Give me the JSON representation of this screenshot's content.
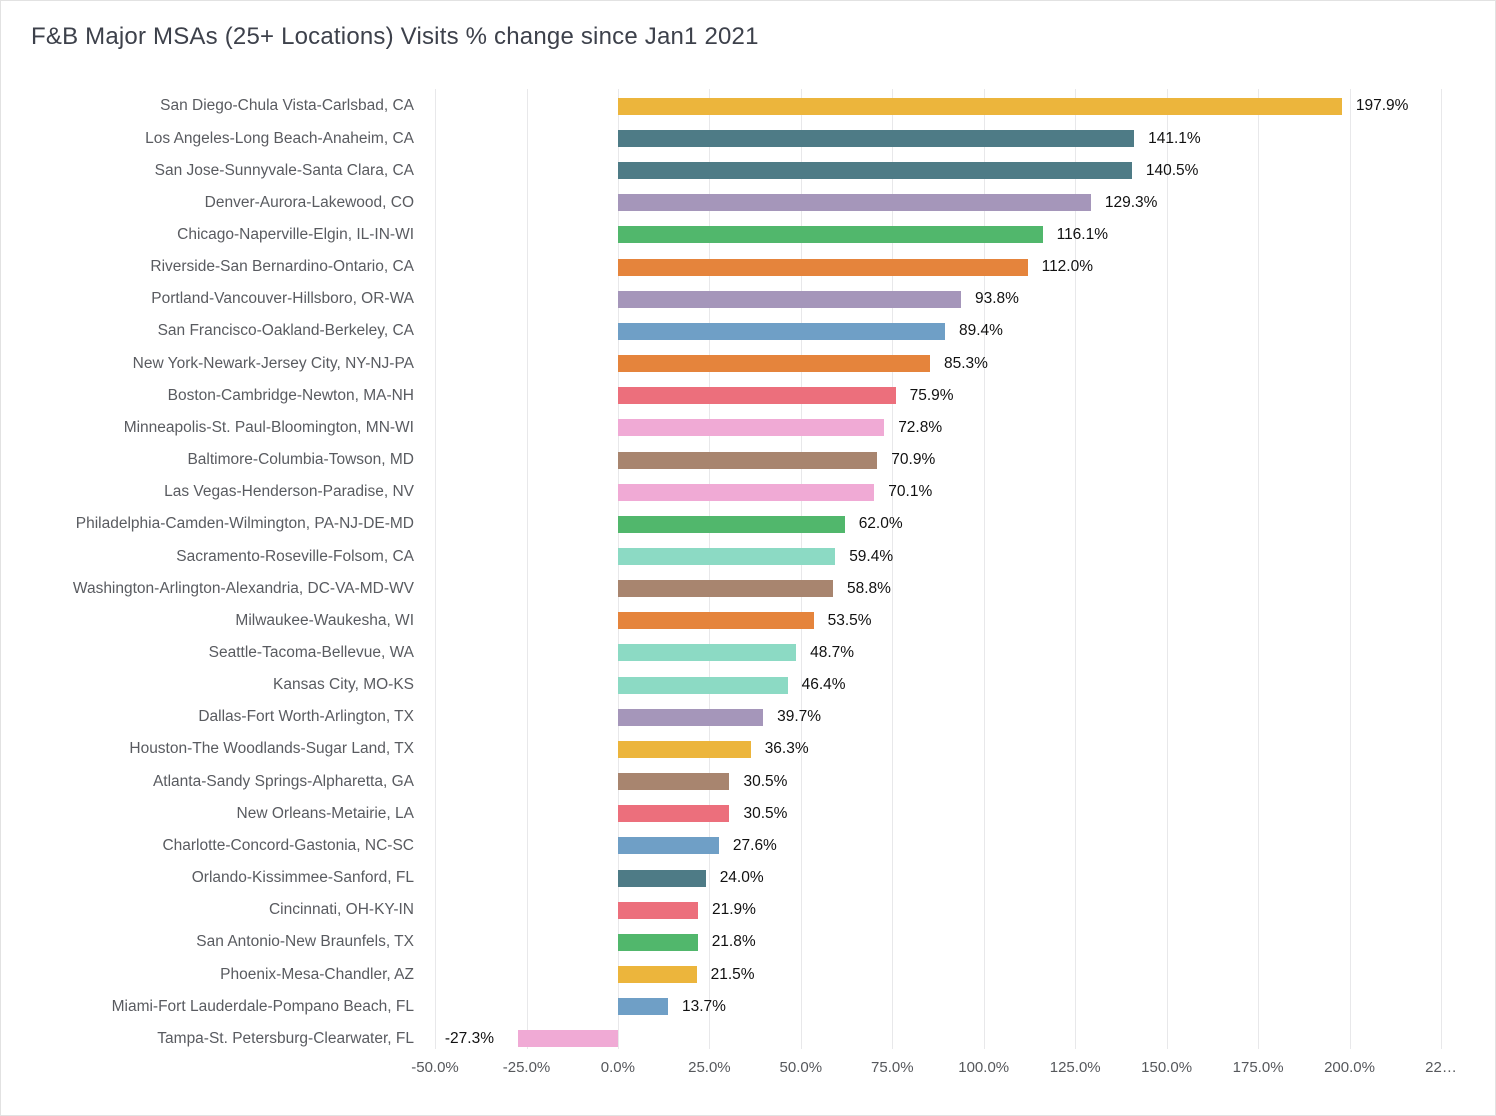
{
  "chart": {
    "title": "F&B Major MSAs (25+ Locations) Visits % change since Jan1 2021"
  },
  "chart_data": {
    "type": "bar",
    "orientation": "horizontal",
    "title": "F&B Major MSAs (25+ Locations) Visits % change since Jan1 2021",
    "xlabel": "",
    "ylabel": "",
    "xlim": [
      -50,
      225
    ],
    "grid": true,
    "background": "#ffffff",
    "grid_color": "#e8e8ea",
    "category_label_color": "#595b60",
    "value_label_color": "#111111",
    "axis_tick_color": "#56585c",
    "x_tick_values": [
      -50,
      -25,
      0,
      25,
      50,
      75,
      100,
      125,
      150,
      175,
      200,
      225
    ],
    "x_tick_labels": [
      "-50.0%",
      "-25.0%",
      "0.0%",
      "25.0%",
      "50.0%",
      "75.0%",
      "100.0%",
      "125.0%",
      "150.0%",
      "175.0%",
      "200.0%",
      "22…"
    ],
    "categories": [
      "San Diego-Chula Vista-Carlsbad, CA",
      "Los Angeles-Long Beach-Anaheim, CA",
      "San Jose-Sunnyvale-Santa Clara, CA",
      "Denver-Aurora-Lakewood, CO",
      "Chicago-Naperville-Elgin, IL-IN-WI",
      "Riverside-San Bernardino-Ontario, CA",
      "Portland-Vancouver-Hillsboro, OR-WA",
      "San Francisco-Oakland-Berkeley, CA",
      "New York-Newark-Jersey City, NY-NJ-PA",
      "Boston-Cambridge-Newton, MA-NH",
      "Minneapolis-St. Paul-Bloomington, MN-WI",
      "Baltimore-Columbia-Towson, MD",
      "Las Vegas-Henderson-Paradise, NV",
      "Philadelphia-Camden-Wilmington, PA-NJ-DE-MD",
      "Sacramento-Roseville-Folsom, CA",
      "Washington-Arlington-Alexandria, DC-VA-MD-WV",
      "Milwaukee-Waukesha, WI",
      "Seattle-Tacoma-Bellevue, WA",
      "Kansas City, MO-KS",
      "Dallas-Fort Worth-Arlington, TX",
      "Houston-The Woodlands-Sugar Land, TX",
      "Atlanta-Sandy Springs-Alpharetta, GA",
      "New Orleans-Metairie, LA",
      "Charlotte-Concord-Gastonia, NC-SC",
      "Orlando-Kissimmee-Sanford, FL",
      "Cincinnati, OH-KY-IN",
      "San Antonio-New Braunfels, TX",
      "Phoenix-Mesa-Chandler, AZ",
      "Miami-Fort Lauderdale-Pompano Beach, FL",
      "Tampa-St. Petersburg-Clearwater, FL"
    ],
    "values": [
      197.9,
      141.1,
      140.5,
      129.3,
      116.1,
      112.0,
      93.8,
      89.4,
      85.3,
      75.9,
      72.8,
      70.9,
      70.1,
      62.0,
      59.4,
      58.8,
      53.5,
      48.7,
      46.4,
      39.7,
      36.3,
      30.5,
      30.5,
      27.6,
      24.0,
      21.9,
      21.8,
      21.5,
      13.7,
      -27.3
    ],
    "value_labels": [
      "197.9%",
      "141.1%",
      "140.5%",
      "129.3%",
      "116.1%",
      "112.0%",
      "93.8%",
      "89.4%",
      "85.3%",
      "75.9%",
      "72.8%",
      "70.9%",
      "70.1%",
      "62.0%",
      "59.4%",
      "58.8%",
      "53.5%",
      "48.7%",
      "46.4%",
      "39.7%",
      "36.3%",
      "30.5%",
      "30.5%",
      "27.6%",
      "24.0%",
      "21.9%",
      "21.8%",
      "21.5%",
      "13.7%",
      "-27.3%"
    ],
    "bar_colors": [
      "#ecb53c",
      "#4e7b86",
      "#4e7b86",
      "#a596ba",
      "#51b76c",
      "#e5843c",
      "#a596ba",
      "#6f9fc6",
      "#e5843c",
      "#ec6f7c",
      "#f0aad5",
      "#a8856f",
      "#f0aad5",
      "#51b76c",
      "#8cdac4",
      "#a8856f",
      "#e5843c",
      "#8cdac4",
      "#8cdac4",
      "#a596ba",
      "#ecb53c",
      "#a8856f",
      "#ec6f7c",
      "#6f9fc6",
      "#4e7b86",
      "#ec6f7c",
      "#51b76c",
      "#ecb53c",
      "#6f9fc6",
      "#f0aad5"
    ]
  }
}
